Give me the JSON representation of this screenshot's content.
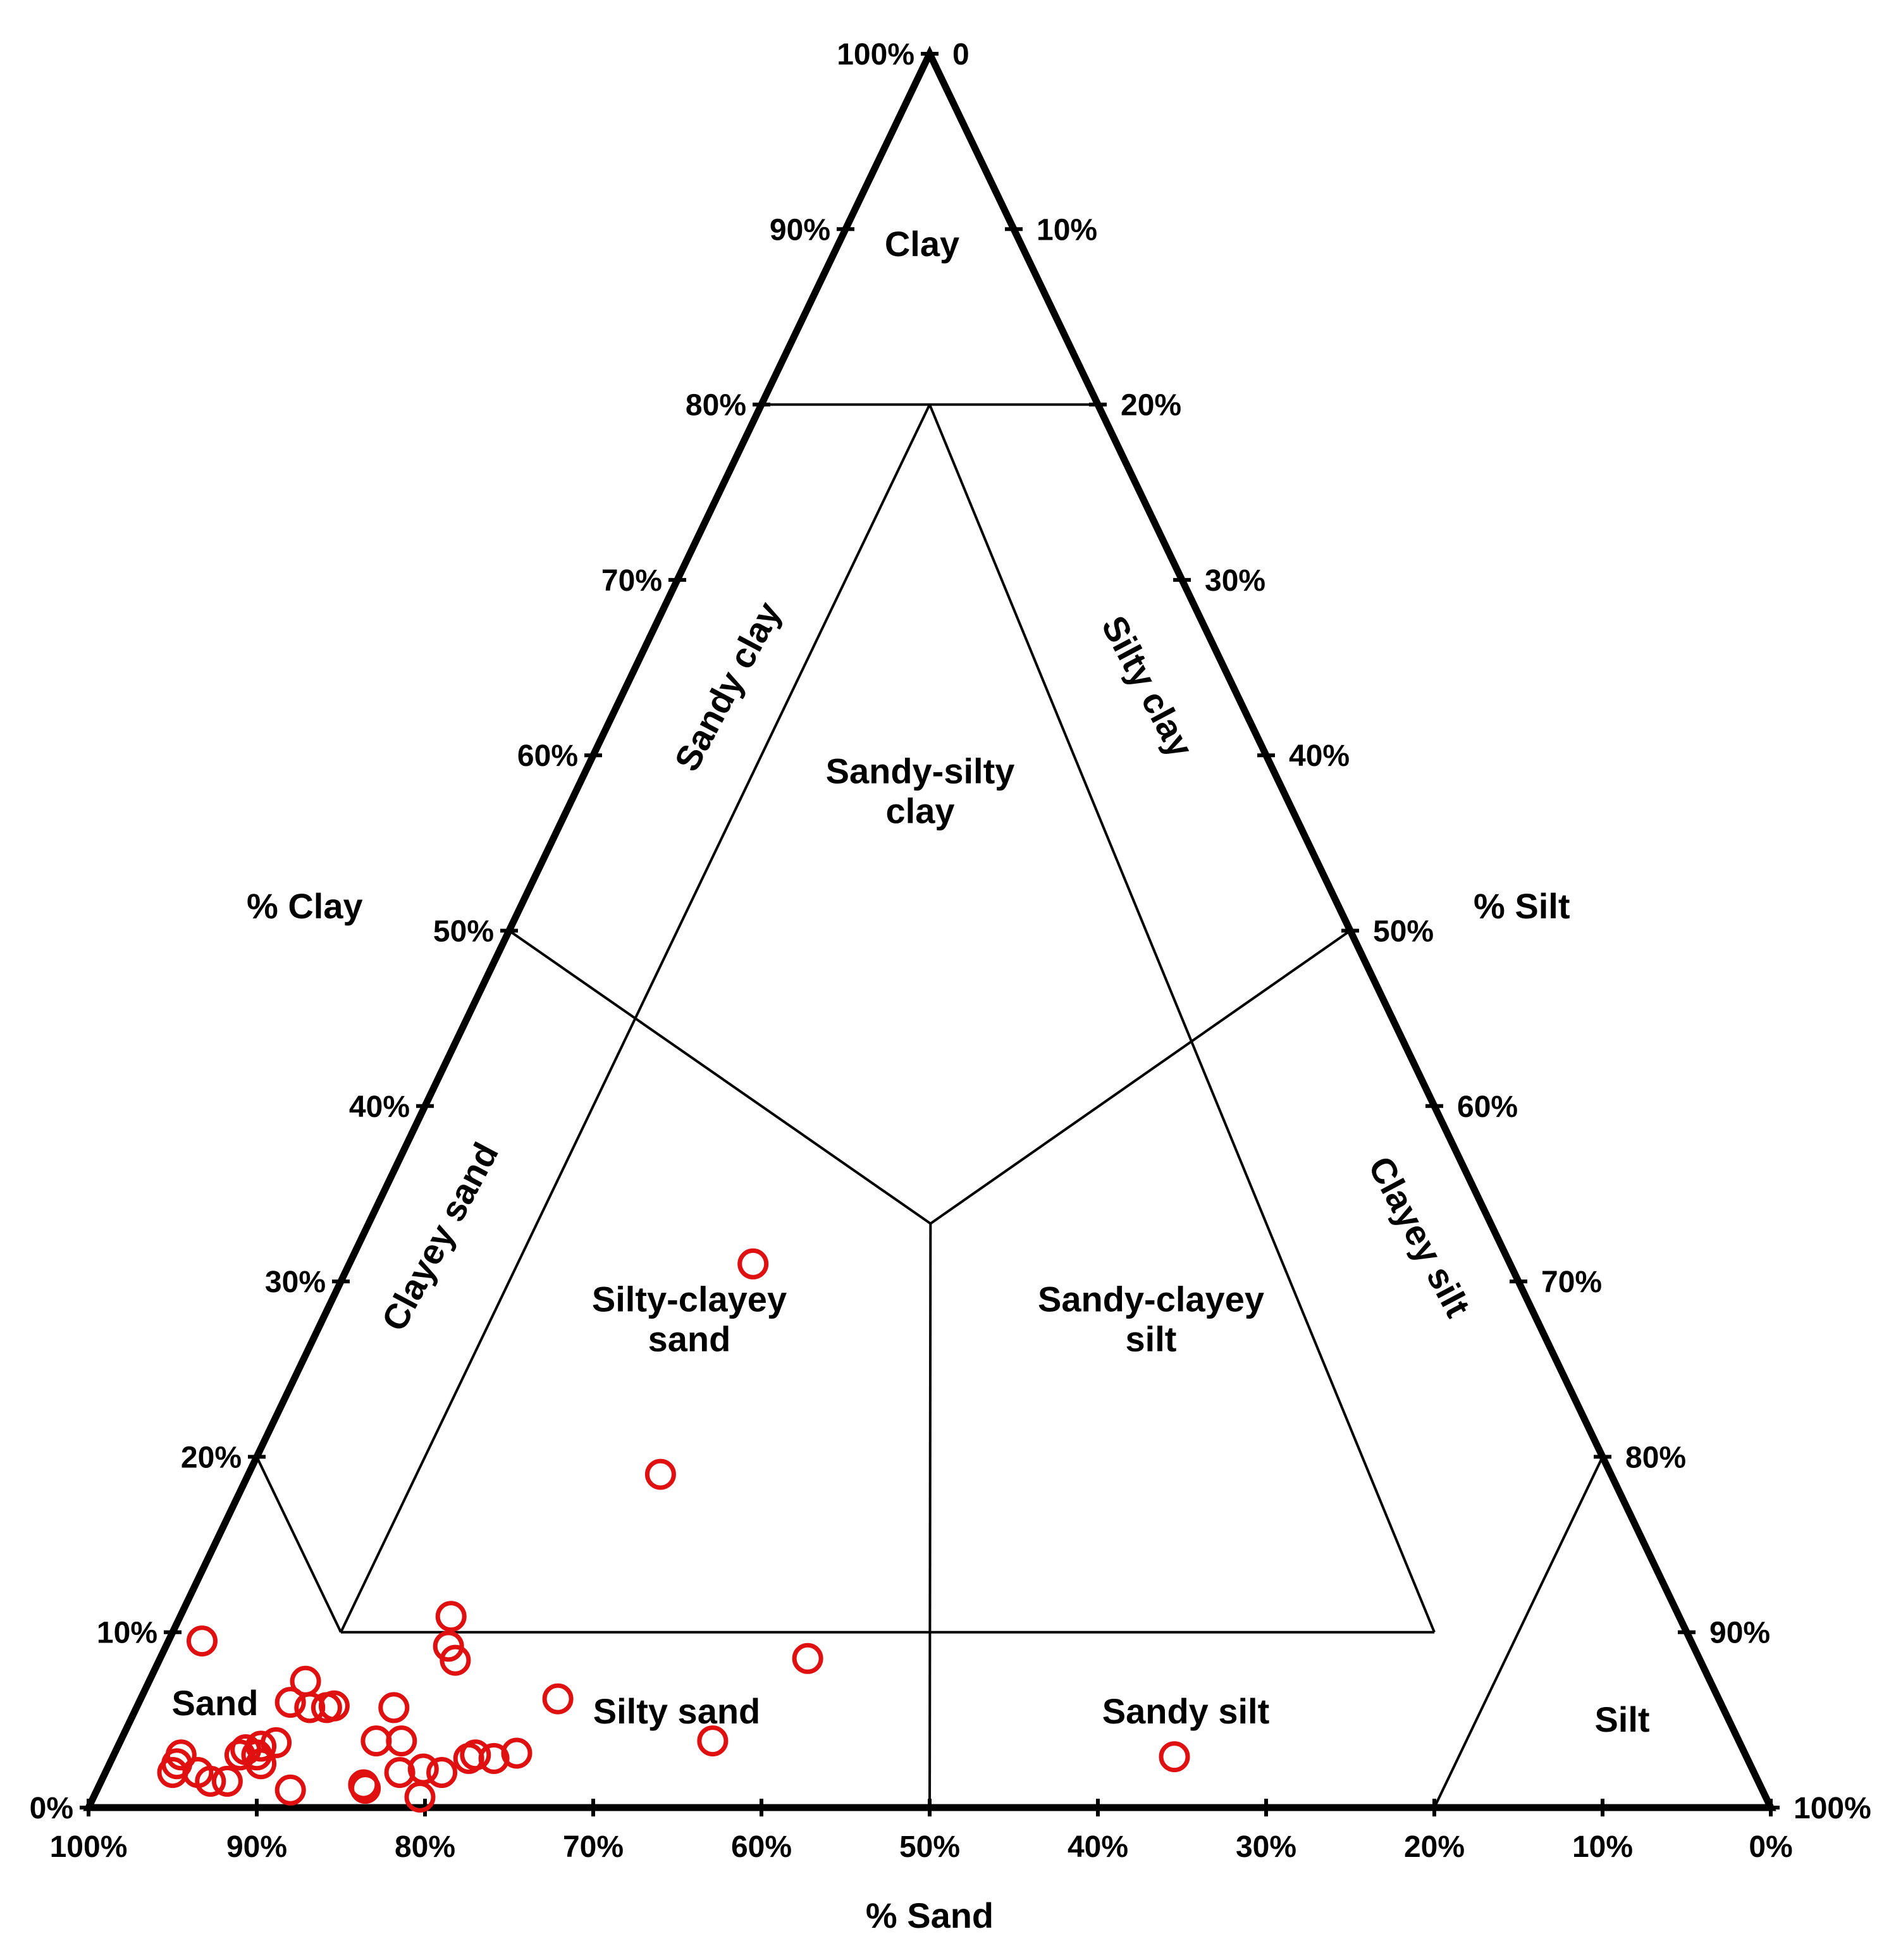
{
  "chart_data": {
    "type": "scatter",
    "subtype": "ternary",
    "axes": {
      "clay": {
        "title": "% Clay",
        "ticks": [
          "0%",
          "10%",
          "20%",
          "30%",
          "40%",
          "50%",
          "60%",
          "70%",
          "80%",
          "90%",
          "100%"
        ]
      },
      "silt": {
        "title": "% Silt",
        "ticks": [
          "0",
          "10%",
          "20%",
          "30%",
          "40%",
          "50%",
          "60%",
          "70%",
          "80%",
          "90%",
          "100%"
        ]
      },
      "sand": {
        "title": "% Sand",
        "ticks": [
          "100%",
          "90%",
          "80%",
          "70%",
          "60%",
          "50%",
          "40%",
          "30%",
          "20%",
          "10%",
          "0%"
        ]
      }
    },
    "regions": [
      {
        "id": "clay",
        "lines": [
          "Clay"
        ]
      },
      {
        "id": "sandy-clay",
        "lines": [
          "Sandy clay"
        ]
      },
      {
        "id": "silty-clay",
        "lines": [
          "Silty clay"
        ]
      },
      {
        "id": "sandy-silty-clay",
        "lines": [
          "Sandy-silty",
          "clay"
        ]
      },
      {
        "id": "clayey-sand",
        "lines": [
          "Clayey sand"
        ]
      },
      {
        "id": "clayey-silt",
        "lines": [
          "Clayey silt"
        ]
      },
      {
        "id": "silty-clayey-sand",
        "lines": [
          "Silty-clayey",
          "sand"
        ]
      },
      {
        "id": "sandy-clayey-silt",
        "lines": [
          "Sandy-clayey",
          "silt"
        ]
      },
      {
        "id": "sand",
        "lines": [
          "Sand"
        ]
      },
      {
        "id": "silty-sand",
        "lines": [
          "Silty sand"
        ]
      },
      {
        "id": "sandy-silt",
        "lines": [
          "Sandy silt"
        ]
      },
      {
        "id": "silt",
        "lines": [
          "Silt"
        ]
      }
    ],
    "boundaries": [
      [
        {
          "clay": 80,
          "sand": 20
        },
        {
          "clay": 80,
          "sand": 0
        }
      ],
      [
        {
          "clay": 80,
          "sand": 10
        },
        {
          "clay": 10,
          "sand": 80
        }
      ],
      [
        {
          "clay": 80,
          "sand": 10
        },
        {
          "clay": 10,
          "sand": 15
        }
      ],
      [
        {
          "clay": 50,
          "sand": 50
        },
        {
          "clay": 33.3,
          "sand": 33.3
        }
      ],
      [
        {
          "clay": 50,
          "sand": 0
        },
        {
          "clay": 33.3,
          "sand": 33.3
        }
      ],
      [
        {
          "clay": 33.3,
          "sand": 33.3
        },
        {
          "clay": 0,
          "sand": 50
        }
      ],
      [
        {
          "clay": 10,
          "sand": 80
        },
        {
          "clay": 10,
          "sand": 15
        }
      ],
      [
        {
          "clay": 20,
          "sand": 80
        },
        {
          "clay": 10,
          "sand": 80
        }
      ],
      [
        {
          "clay": 20,
          "sand": 0
        },
        {
          "clay": 0,
          "sand": 20
        }
      ]
    ],
    "series": [
      {
        "marker": "open-circle",
        "color": "#e01010",
        "points": [
          {
            "sand": 88.5,
            "clay": 9.5
          },
          {
            "sand": 93,
            "clay": 3
          },
          {
            "sand": 93.5,
            "clay": 2.5
          },
          {
            "sand": 94,
            "clay": 2
          },
          {
            "sand": 92.5,
            "clay": 2
          },
          {
            "sand": 92,
            "clay": 1.5
          },
          {
            "sand": 91,
            "clay": 1.5
          },
          {
            "sand": 89.5,
            "clay": 3
          },
          {
            "sand": 89,
            "clay": 3.3
          },
          {
            "sand": 88.5,
            "clay": 3
          },
          {
            "sand": 88.5,
            "clay": 2.5
          },
          {
            "sand": 88,
            "clay": 3.5
          },
          {
            "sand": 87.5,
            "clay": 1
          },
          {
            "sand": 87,
            "clay": 3.7
          },
          {
            "sand": 85,
            "clay": 6
          },
          {
            "sand": 84,
            "clay": 5.7
          },
          {
            "sand": 83,
            "clay": 5.7
          },
          {
            "sand": 82.5,
            "clay": 5.8
          },
          {
            "sand": 83.5,
            "clay": 7.2
          },
          {
            "sand": 83,
            "clay": 1.3
          },
          {
            "sand": 83,
            "clay": 1.1
          },
          {
            "sand": 81,
            "clay": 3.8
          },
          {
            "sand": 80.5,
            "clay": 2
          },
          {
            "sand": 79,
            "clay": 5.7
          },
          {
            "sand": 79.5,
            "clay": 3.8
          },
          {
            "sand": 79,
            "clay": 2.2
          },
          {
            "sand": 80,
            "clay": 0.6
          },
          {
            "sand": 78,
            "clay": 2
          },
          {
            "sand": 76,
            "clay": 2.8
          },
          {
            "sand": 75.5,
            "clay": 3
          },
          {
            "sand": 74.5,
            "clay": 2.8
          },
          {
            "sand": 73,
            "clay": 3.1
          },
          {
            "sand": 74,
            "clay": 9.2
          },
          {
            "sand": 74,
            "clay": 8.4
          },
          {
            "sand": 73,
            "clay": 10.9
          },
          {
            "sand": 69,
            "clay": 6.2
          },
          {
            "sand": 61,
            "clay": 3.8
          },
          {
            "sand": 53,
            "clay": 8.5
          },
          {
            "sand": 56.5,
            "clay": 19
          },
          {
            "sand": 45,
            "clay": 31
          },
          {
            "sand": 34,
            "clay": 2.9
          }
        ]
      }
    ],
    "grid": false,
    "legend": "none"
  }
}
